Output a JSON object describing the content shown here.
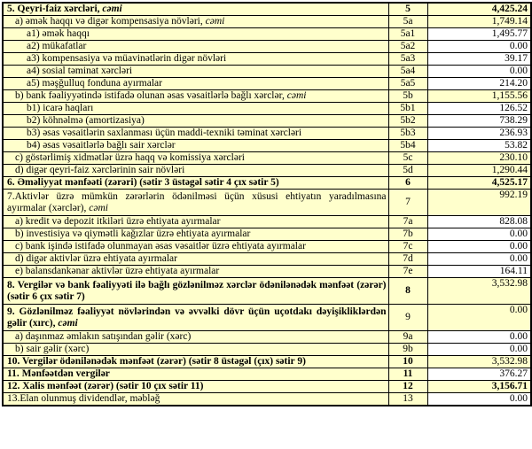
{
  "page": {
    "background": "#ffffff"
  },
  "table": {
    "border_color": "#000000",
    "cell_bg_yellow": "#ffffcc",
    "cell_bg_white": "#ffffff",
    "columns": [
      "label",
      "row_no",
      "amount"
    ],
    "rows": [
      {
        "label": "5. Qeyri-faiz xərcləri, ",
        "label_italic": "cəmi",
        "num": "5",
        "value": "4,425.24",
        "indent": 0,
        "label_bold": true,
        "num_bold": true,
        "value_bold": true,
        "value_bg": "yellow",
        "two_line": false,
        "justify": false
      },
      {
        "label": "a) əmək haqqı və digər kompensasiya növləri, ",
        "label_italic": "cəmi",
        "num": "5a",
        "value": "1,749.14",
        "indent": 1,
        "label_bold": false,
        "num_bold": false,
        "value_bold": false,
        "value_bg": "yellow",
        "two_line": false,
        "justify": false
      },
      {
        "label": "a1) əmək haqqı",
        "num": "5a1",
        "value": "1,495.77",
        "indent": 2,
        "label_bold": false,
        "num_bold": false,
        "value_bold": false,
        "value_bg": "white",
        "two_line": false,
        "justify": false
      },
      {
        "label": "a2) mükafatlar",
        "num": "5a2",
        "value": "0.00",
        "indent": 2,
        "label_bold": false,
        "num_bold": false,
        "value_bold": false,
        "value_bg": "white",
        "two_line": false,
        "justify": false
      },
      {
        "label": "a3) kompensasiya və müavinətlərin digər növləri",
        "num": "5a3",
        "value": "39.17",
        "indent": 2,
        "label_bold": false,
        "num_bold": false,
        "value_bold": false,
        "value_bg": "white",
        "two_line": false,
        "justify": false
      },
      {
        "label": "a4) sosial təminat xərcləri",
        "num": "5a4",
        "value": "0.00",
        "indent": 2,
        "label_bold": false,
        "num_bold": false,
        "value_bold": false,
        "value_bg": "white",
        "two_line": false,
        "justify": false
      },
      {
        "label": "a5) məşğulluq fonduna ayırmalar",
        "num": "5a5",
        "value": "214.20",
        "indent": 2,
        "label_bold": false,
        "num_bold": false,
        "value_bold": false,
        "value_bg": "white",
        "two_line": false,
        "justify": false
      },
      {
        "label": "b) bank fəaliyyətində istifadə olunan əsas vəsaitlərlə bağlı xərclər, ",
        "label_italic": "cəmi",
        "num": "5b",
        "value": "1,155.56",
        "indent": 1,
        "label_bold": false,
        "num_bold": false,
        "value_bold": false,
        "value_bg": "yellow",
        "two_line": false,
        "justify": false
      },
      {
        "label": "b1) icarə haqları",
        "num": "5b1",
        "value": "126.52",
        "indent": 2,
        "label_bold": false,
        "num_bold": false,
        "value_bold": false,
        "value_bg": "white",
        "two_line": false,
        "justify": false
      },
      {
        "label": "b2) köhnəlmə (amortizasiya)",
        "num": "5b2",
        "value": "738.29",
        "indent": 2,
        "label_bold": false,
        "num_bold": false,
        "value_bold": false,
        "value_bg": "white",
        "two_line": false,
        "justify": false
      },
      {
        "label": "b3) əsas vəsaitlərin saxlanması üçün maddi-texniki təminat xərcləri",
        "num": "5b3",
        "value": "236.93",
        "indent": 2,
        "label_bold": false,
        "num_bold": false,
        "value_bold": false,
        "value_bg": "white",
        "two_line": false,
        "justify": false
      },
      {
        "label": "b4) əsas vəsaitlərlə bağlı sair xərclər",
        "num": "5b4",
        "value": "53.82",
        "indent": 2,
        "label_bold": false,
        "num_bold": false,
        "value_bold": false,
        "value_bg": "white",
        "two_line": false,
        "justify": false
      },
      {
        "label": "c) göstərlimiş xidmətlər üzrə haqq və komissiya xərcləri",
        "num": "5c",
        "value": "230.10",
        "indent": 1,
        "label_bold": false,
        "num_bold": false,
        "value_bold": false,
        "value_bg": "yellow",
        "two_line": false,
        "justify": false
      },
      {
        "label": "d) digər qeyri-faiz xərclərinin sair növləri",
        "num": "5d",
        "value": "1,290.44",
        "indent": 1,
        "label_bold": false,
        "num_bold": false,
        "value_bold": false,
        "value_bg": "yellow",
        "two_line": false,
        "justify": false
      },
      {
        "label": "6. Əməliyyat mənfəəti (zərəri) (sətir 3 üstəgəl sətir 4 çıx sətir 5)",
        "num": "6",
        "value": "4,525.17",
        "indent": 0,
        "label_bold": true,
        "num_bold": true,
        "value_bold": true,
        "value_bg": "yellow",
        "two_line": false,
        "justify": false
      },
      {
        "label": "7.Aktivlər üzrə mümkün zərərlərin ödənilməsi üçün xüsusi ehtiyatın yaradılmasına ayırmalar (xərclər), ",
        "label_italic": "cəmi",
        "num": "7",
        "value": "992.19",
        "indent": 0,
        "label_bold": false,
        "num_bold": false,
        "value_bold": false,
        "value_bg": "yellow",
        "two_line": true,
        "justify": true
      },
      {
        "label": "a) kredit və depozit itkiləri üzrə ehtiyata ayırmalar",
        "num": "7a",
        "value": "828.08",
        "indent": 1,
        "label_bold": false,
        "num_bold": false,
        "value_bold": false,
        "value_bg": "white",
        "two_line": false,
        "justify": false
      },
      {
        "label": "b) investisiya və qiymətli kağızlar üzrə ehtiyata ayırmalar",
        "num": "7b",
        "value": "0.00",
        "indent": 1,
        "label_bold": false,
        "num_bold": false,
        "value_bold": false,
        "value_bg": "white",
        "two_line": false,
        "justify": false
      },
      {
        "label": "c) bank işində istifadə olunmayan əsas vəsaitlər üzrə ehtiyata ayırmalar",
        "num": "7c",
        "value": "0.00",
        "indent": 1,
        "label_bold": false,
        "num_bold": false,
        "value_bold": false,
        "value_bg": "white",
        "two_line": false,
        "justify": false
      },
      {
        "label": "d) digər aktivlər üzrə ehtiyata ayırmalar",
        "num": "7d",
        "value": "0.00",
        "indent": 1,
        "label_bold": false,
        "num_bold": false,
        "value_bold": false,
        "value_bg": "white",
        "two_line": false,
        "justify": false
      },
      {
        "label": "e) balansdankənar aktivlər üzrə ehtiyata ayırmalar",
        "num": "7e",
        "value": "164.11",
        "indent": 1,
        "label_bold": false,
        "num_bold": false,
        "value_bold": false,
        "value_bg": "white",
        "two_line": false,
        "justify": false
      },
      {
        "label": "8. Vergilər və bank fəaliyyəti ilə bağlı gözlənilməz xərclər ödənilənədək mənfəət (zərər) (sətir 6 çıx sətir 7)",
        "num": "8",
        "value": "3,532.98",
        "indent": 0,
        "label_bold": true,
        "num_bold": true,
        "value_bold": false,
        "value_bg": "yellow",
        "two_line": true,
        "justify": true
      },
      {
        "label": "9. Gözlənilməz fəaliyyət növlərindən və əvvəlki dövr üçün uçotdakı dəyişikliklərdən gəlir (xırc), ",
        "label_italic": "cəmi",
        "num": "9",
        "value": "0.00",
        "indent": 0,
        "label_bold": true,
        "num_bold": false,
        "value_bold": false,
        "value_bg": "yellow",
        "two_line": true,
        "justify": true
      },
      {
        "label": "a) daşınmaz əmlakın satışından gəlir (xərc)",
        "num": "9a",
        "value": "0.00",
        "indent": 1,
        "label_bold": false,
        "num_bold": false,
        "value_bold": false,
        "value_bg": "white",
        "two_line": false,
        "justify": false
      },
      {
        "label": "b) sair gəlir (xərc)",
        "num": "9b",
        "value": "0.00",
        "indent": 1,
        "label_bold": false,
        "num_bold": false,
        "value_bold": false,
        "value_bg": "white",
        "two_line": false,
        "justify": false
      },
      {
        "label": "10. Vergilər ödənilənədək mənfəət (zərər) (sətir 8 üstəgəl (çıx) sətir 9)",
        "num": "10",
        "value": "3,532.98",
        "indent": 0,
        "label_bold": true,
        "num_bold": true,
        "value_bold": false,
        "value_bg": "yellow",
        "two_line": false,
        "justify": false
      },
      {
        "label": "11. Mənfəətdən vergilər",
        "num": "11",
        "value": "376.27",
        "indent": 0,
        "label_bold": true,
        "num_bold": true,
        "value_bold": false,
        "value_bg": "white",
        "two_line": false,
        "justify": false
      },
      {
        "label": "12. Xalis mənfəət (zərər) (sətir 10 çıx sətir 11)",
        "num": "12",
        "value": "3,156.71",
        "indent": 0,
        "label_bold": true,
        "num_bold": true,
        "value_bold": true,
        "value_bg": "yellow",
        "two_line": false,
        "justify": false
      },
      {
        "label": "13.Elan olunmuş dividendlər, məbləğ",
        "num": "13",
        "value": "0.00",
        "indent": 0,
        "label_bold": false,
        "num_bold": false,
        "value_bold": false,
        "value_bg": "white",
        "two_line": false,
        "justify": false
      }
    ]
  }
}
